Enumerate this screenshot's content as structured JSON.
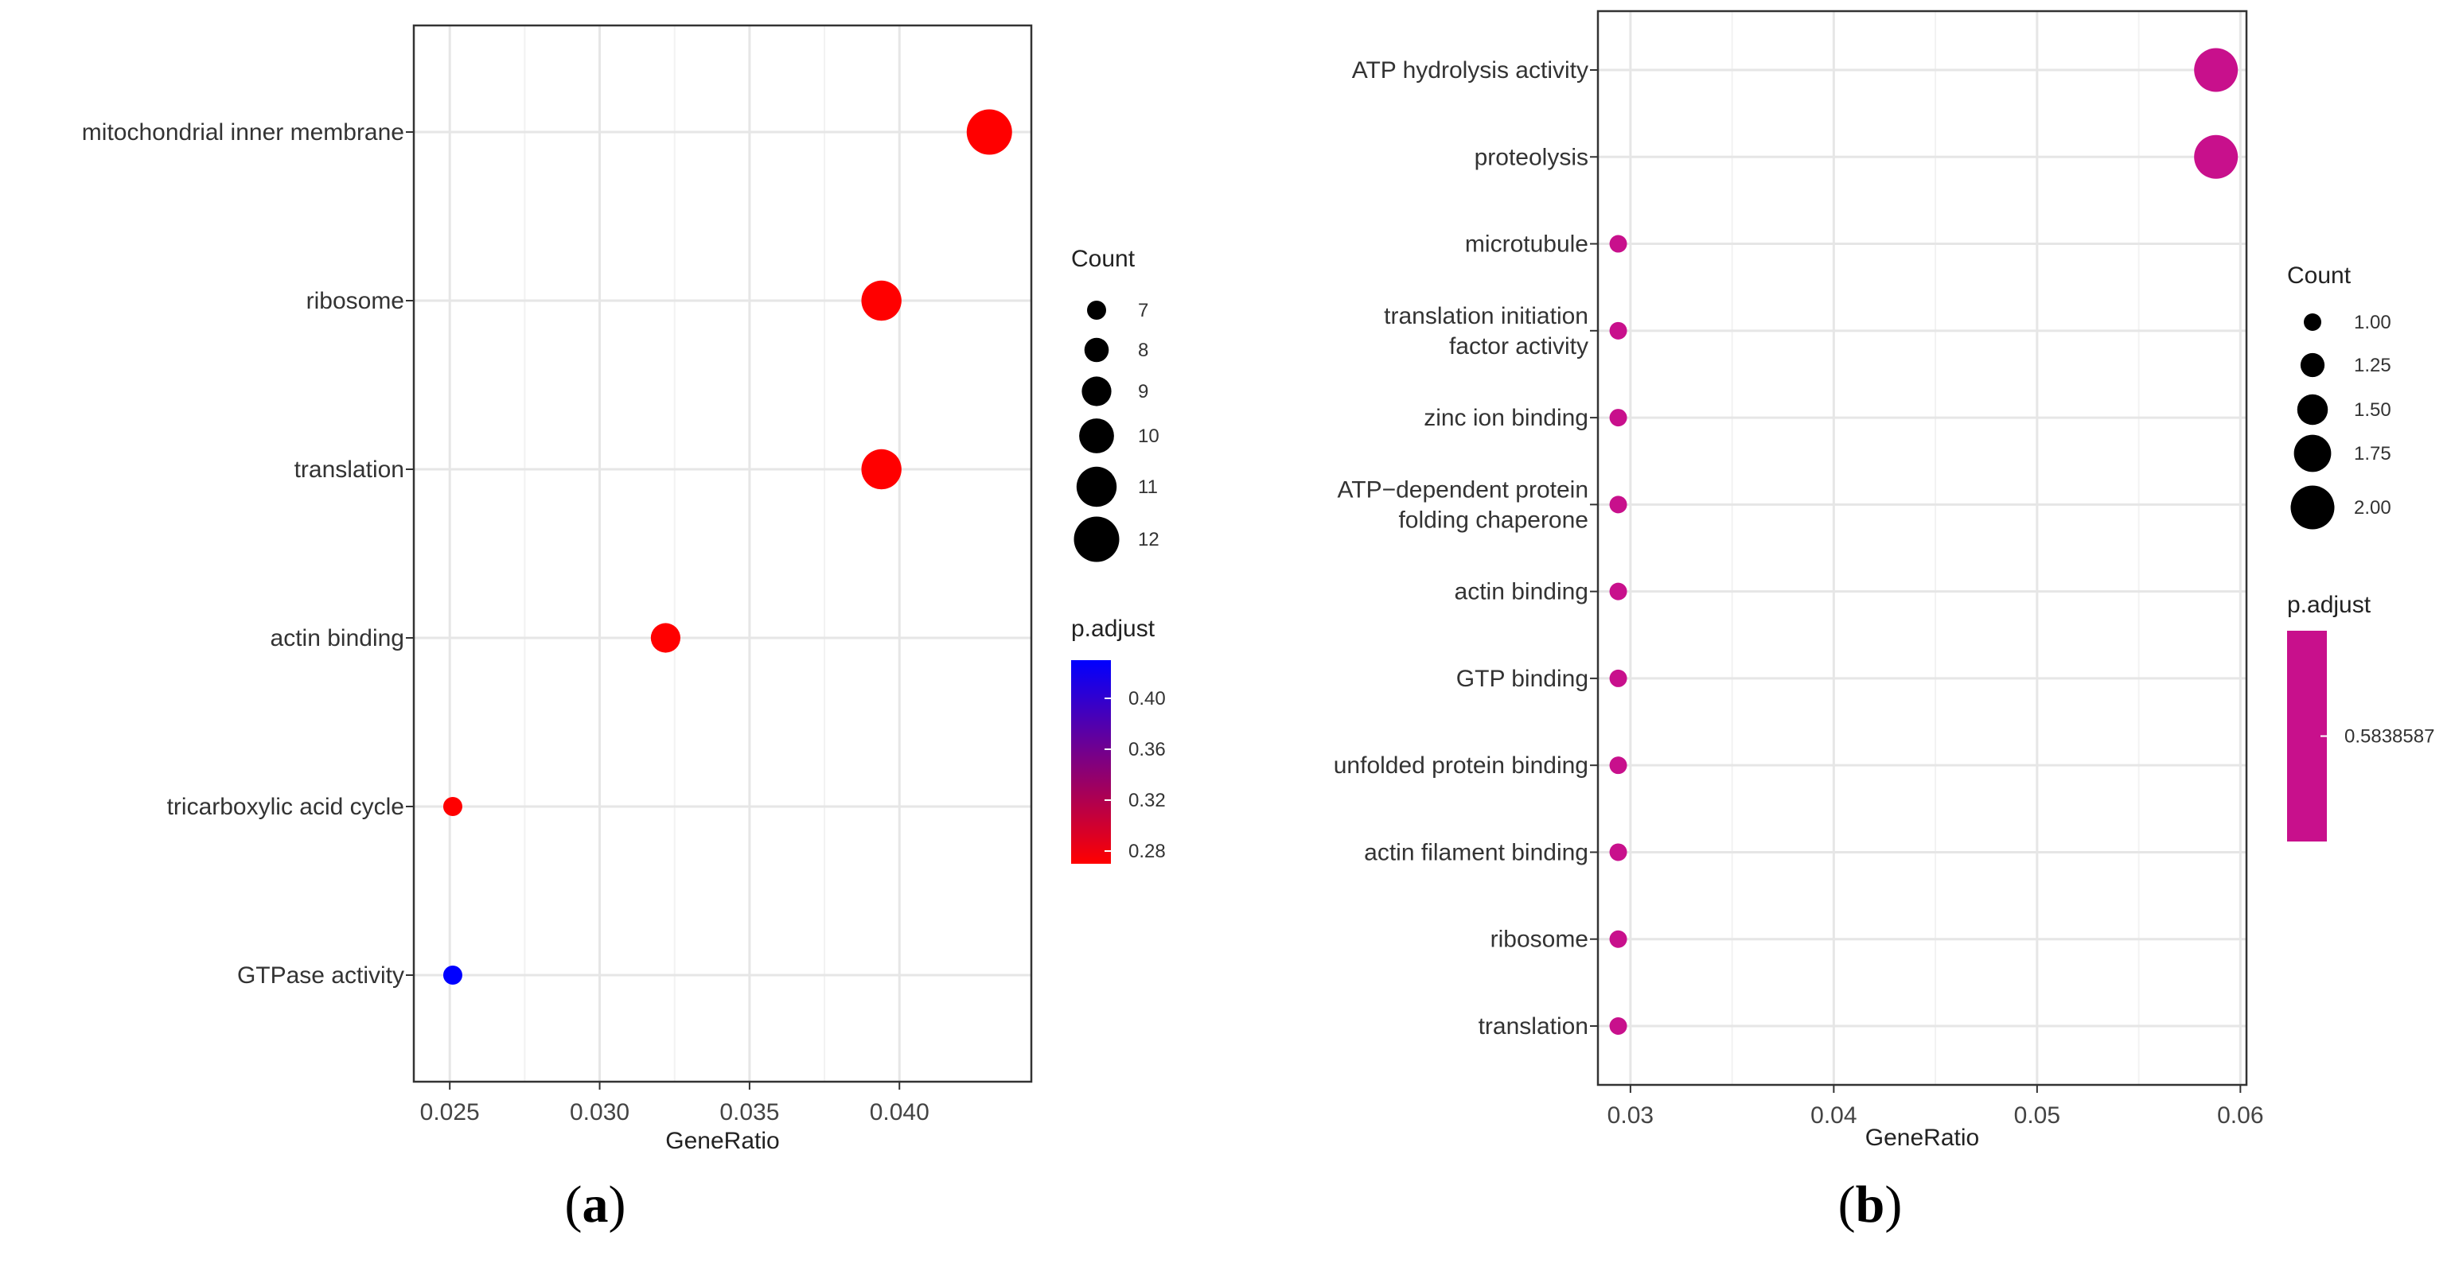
{
  "chart_data": [
    {
      "type": "scatter",
      "panel_label": "a",
      "xlabel": "GeneRatio",
      "xlim": [
        0.0238,
        0.0444
      ],
      "xticks": [
        0.025,
        0.03,
        0.035,
        0.04
      ],
      "xtick_labels": [
        "0.025",
        "0.030",
        "0.035",
        "0.040"
      ],
      "categories": [
        "mitochondrial inner membrane",
        "ribosome",
        "translation",
        "actin binding",
        "tricarboxylic acid cycle",
        "GTPase activity"
      ],
      "points": [
        {
          "term": "mitochondrial inner membrane",
          "gene_ratio": 0.043,
          "count": 12,
          "p_adjust": 0.27
        },
        {
          "term": "ribosome",
          "gene_ratio": 0.0394,
          "count": 11,
          "p_adjust": 0.27
        },
        {
          "term": "translation",
          "gene_ratio": 0.0394,
          "count": 11,
          "p_adjust": 0.27
        },
        {
          "term": "actin binding",
          "gene_ratio": 0.0322,
          "count": 9,
          "p_adjust": 0.27
        },
        {
          "term": "tricarboxylic acid cycle",
          "gene_ratio": 0.0251,
          "count": 7,
          "p_adjust": 0.27
        },
        {
          "term": "GTPase activity",
          "gene_ratio": 0.0251,
          "count": 7,
          "p_adjust": 0.43
        }
      ],
      "size_legend": {
        "title": "Count",
        "values": [
          7,
          8,
          9,
          10,
          11,
          12
        ],
        "labels": [
          "7",
          "8",
          "9",
          "10",
          "11",
          "12"
        ]
      },
      "color_legend": {
        "title": "p.adjust",
        "range": [
          0.27,
          0.43
        ],
        "ticks": [
          0.4,
          0.36,
          0.32,
          0.28
        ],
        "tick_labels": [
          "0.40",
          "0.36",
          "0.32",
          "0.28"
        ],
        "low_color": "#ff0000",
        "high_color": "#0000ff"
      }
    },
    {
      "type": "scatter",
      "panel_label": "b",
      "xlabel": "GeneRatio",
      "xlim": [
        0.0284,
        0.0603
      ],
      "xticks": [
        0.03,
        0.04,
        0.05,
        0.06
      ],
      "xtick_labels": [
        "0.03",
        "0.04",
        "0.05",
        "0.06"
      ],
      "categories": [
        "ATP hydrolysis activity",
        "proteolysis",
        "microtubule",
        "translation initiation\nfactor activity",
        "zinc ion binding",
        "ATP−dependent protein\nfolding chaperone",
        "actin binding",
        "GTP binding",
        "unfolded protein binding",
        "actin filament binding",
        "ribosome",
        "translation"
      ],
      "points": [
        {
          "term": "ATP hydrolysis activity",
          "gene_ratio": 0.0588,
          "count": 2,
          "p_adjust": 0.5838587
        },
        {
          "term": "proteolysis",
          "gene_ratio": 0.0588,
          "count": 2,
          "p_adjust": 0.5838587
        },
        {
          "term": "microtubule",
          "gene_ratio": 0.0294,
          "count": 1,
          "p_adjust": 0.5838587
        },
        {
          "term": "translation initiation factor activity",
          "gene_ratio": 0.0294,
          "count": 1,
          "p_adjust": 0.5838587
        },
        {
          "term": "zinc ion binding",
          "gene_ratio": 0.0294,
          "count": 1,
          "p_adjust": 0.5838587
        },
        {
          "term": "ATP−dependent protein folding chaperone",
          "gene_ratio": 0.0294,
          "count": 1,
          "p_adjust": 0.5838587
        },
        {
          "term": "actin binding",
          "gene_ratio": 0.0294,
          "count": 1,
          "p_adjust": 0.5838587
        },
        {
          "term": "GTP binding",
          "gene_ratio": 0.0294,
          "count": 1,
          "p_adjust": 0.5838587
        },
        {
          "term": "unfolded protein binding",
          "gene_ratio": 0.0294,
          "count": 1,
          "p_adjust": 0.5838587
        },
        {
          "term": "actin filament binding",
          "gene_ratio": 0.0294,
          "count": 1,
          "p_adjust": 0.5838587
        },
        {
          "term": "ribosome",
          "gene_ratio": 0.0294,
          "count": 1,
          "p_adjust": 0.5838587
        },
        {
          "term": "translation",
          "gene_ratio": 0.0294,
          "count": 1,
          "p_adjust": 0.5838587
        }
      ],
      "size_legend": {
        "title": "Count",
        "values": [
          1.0,
          1.25,
          1.5,
          1.75,
          2.0
        ],
        "labels": [
          "1.00",
          "1.25",
          "1.50",
          "1.75",
          "2.00"
        ]
      },
      "color_legend": {
        "title": "p.adjust",
        "ticks": [
          0.5838587
        ],
        "tick_labels": [
          "0.5838587"
        ],
        "color": "#c8108c"
      }
    }
  ]
}
